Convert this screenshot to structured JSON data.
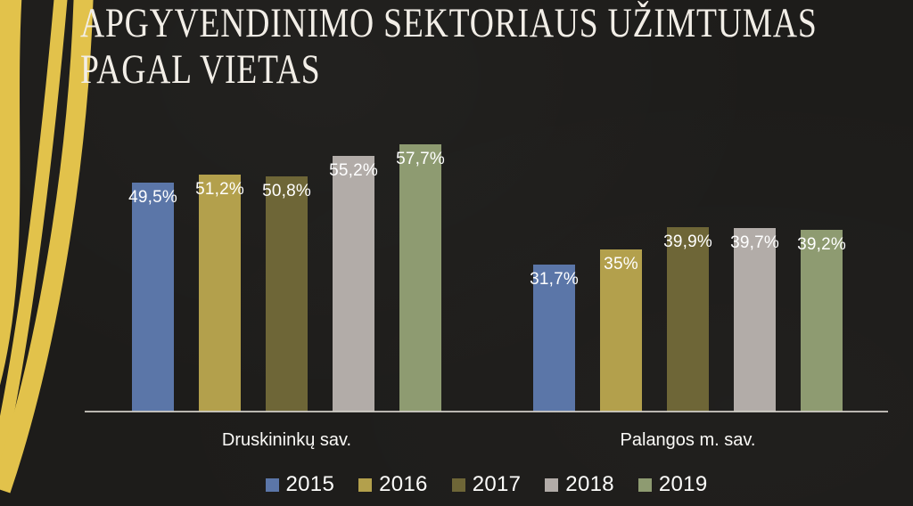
{
  "page": {
    "background_color": "#1d1c1a"
  },
  "decoration": {
    "name": "wavy-ribbons-left",
    "color": "#e2c24b"
  },
  "title": {
    "line1": "APGYVENDINIMO SEKTORIAUS UŽIMTUMAS",
    "line2": "PAGAL VIETAS",
    "color": "#f2eee7"
  },
  "chart_data": {
    "type": "bar",
    "title": "Apgyvendinimo sektoriaus užimtumas pagal vietas",
    "categories": [
      "Druskininkų sav.",
      "Palangos m. sav."
    ],
    "series": [
      {
        "name": "2015",
        "color": "#5b76a8",
        "values": [
          49.5,
          31.7
        ],
        "labels": [
          "49,5%",
          "31,7%"
        ]
      },
      {
        "name": "2016",
        "color": "#b3a04c",
        "values": [
          51.2,
          35
        ],
        "labels": [
          "51,2%",
          "35%"
        ]
      },
      {
        "name": "2017",
        "color": "#6e6637",
        "values": [
          50.8,
          39.9
        ],
        "labels": [
          "50,8%",
          "39,9%"
        ]
      },
      {
        "name": "2018",
        "color": "#b2aca8",
        "values": [
          55.2,
          39.7
        ],
        "labels": [
          "55,2%",
          "39,7%"
        ]
      },
      {
        "name": "2019",
        "color": "#8e9b71",
        "values": [
          57.7,
          39.2
        ],
        "labels": [
          "57,7%",
          "39,2%"
        ]
      }
    ],
    "ylim": [
      0,
      60
    ],
    "grid": false,
    "y_axis_visible": false,
    "x_axis_line_color": "#d6d2cb",
    "value_label_color": "#ffffff",
    "legend_position": "bottom"
  }
}
